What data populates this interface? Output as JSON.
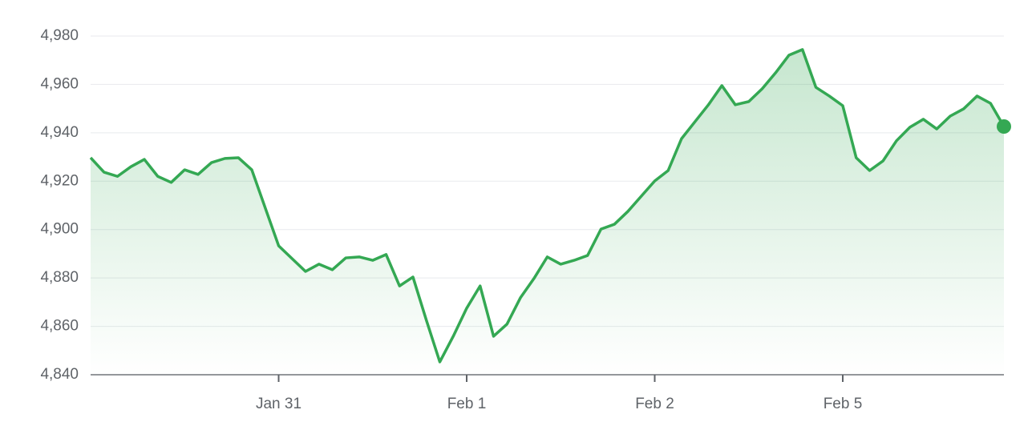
{
  "chart_data": {
    "type": "line",
    "x": [
      0,
      1,
      2,
      3,
      4,
      5,
      6,
      7,
      8,
      9,
      10,
      11,
      12,
      13,
      14,
      15,
      16,
      17,
      18,
      19,
      20,
      21,
      22,
      23,
      24,
      25,
      26,
      27,
      28,
      29,
      30,
      31,
      32,
      33,
      34,
      35,
      36,
      37,
      38,
      39,
      40,
      41,
      42,
      43,
      44,
      45,
      46,
      47,
      48,
      49,
      50,
      51,
      52,
      53,
      54,
      55,
      56,
      57,
      58,
      59,
      60,
      61,
      62,
      63,
      64,
      65,
      66,
      67,
      68
    ],
    "series": [
      {
        "color": "#34a853",
        "values": [
          4929.7,
          4923.7,
          4922.0,
          4926.0,
          4929.0,
          4922.0,
          4919.5,
          4924.7,
          4922.8,
          4927.7,
          4929.4,
          4929.7,
          4924.7,
          4909.0,
          4893.3,
          4888.0,
          4882.7,
          4885.7,
          4883.4,
          4888.3,
          4888.7,
          4887.3,
          4889.7,
          4876.7,
          4880.4,
          4862.5,
          4845.3,
          4855.9,
          4867.5,
          4876.7,
          4855.9,
          4860.9,
          4871.8,
          4879.7,
          4888.7,
          4885.7,
          4887.3,
          4889.3,
          4900.2,
          4902.2,
          4907.5,
          4913.8,
          4920.1,
          4924.4,
          4937.6,
          4944.6,
          4951.6,
          4959.5,
          4951.6,
          4952.9,
          4958.2,
          4964.8,
          4972.1,
          4974.4,
          4958.8,
          4955.2,
          4951.2,
          4929.7,
          4924.4,
          4928.4,
          4936.7,
          4942.3,
          4945.6,
          4941.6,
          4946.9,
          4949.9,
          4955.2,
          4952.2,
          4942.6
        ]
      }
    ],
    "xlim": [
      0,
      68
    ],
    "xticks": [
      {
        "value": 14,
        "label": "Jan 31"
      },
      {
        "value": 28,
        "label": "Feb 1"
      },
      {
        "value": 42,
        "label": "Feb 2"
      },
      {
        "value": 56,
        "label": "Feb 5"
      }
    ],
    "ylim": [
      4840,
      4980
    ],
    "yticks": [
      {
        "value": 4840,
        "label": "4,840"
      },
      {
        "value": 4860,
        "label": "4,860"
      },
      {
        "value": 4880,
        "label": "4,880"
      },
      {
        "value": 4900,
        "label": "4,900"
      },
      {
        "value": 4920,
        "label": "4,920"
      },
      {
        "value": 4940,
        "label": "4,940"
      },
      {
        "value": 4960,
        "label": "4,960"
      },
      {
        "value": 4980,
        "label": "4,980"
      }
    ],
    "grid": true
  }
}
